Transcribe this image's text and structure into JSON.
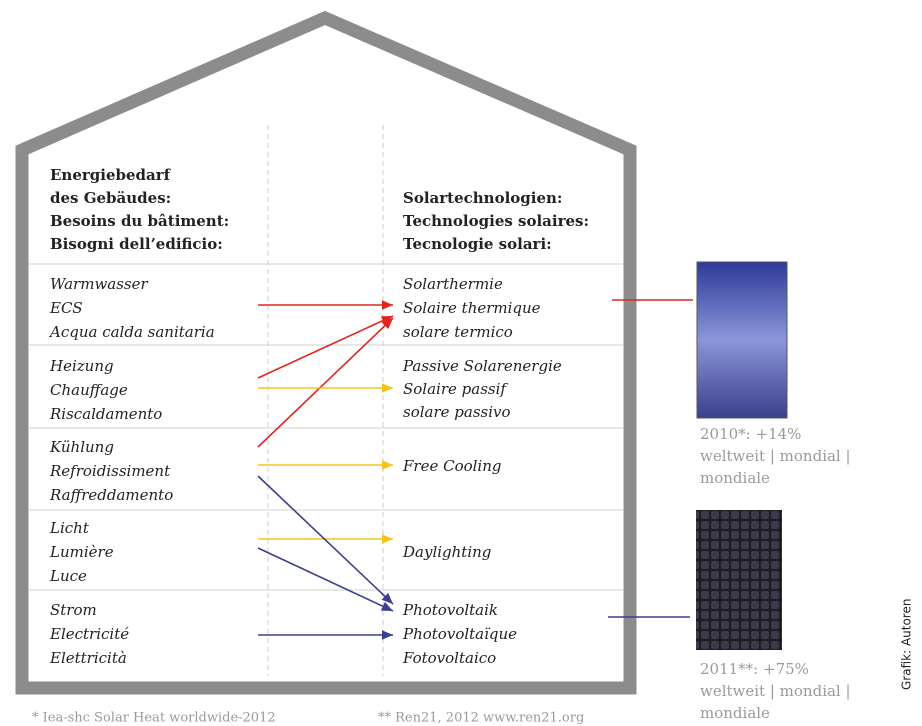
{
  "header": {
    "left": [
      "Energiebedarf",
      "des Gebäudes:",
      "Besoins du bâtiment:",
      "Bisogni dell’edificio:"
    ],
    "right": [
      "Solartechnologien:",
      "Technologies solaires:",
      "Tecnologie solari:"
    ]
  },
  "needs": [
    [
      "Warmwasser",
      "ECS",
      "Acqua calda sanitaria"
    ],
    [
      "Heizung",
      "Chauffage",
      "Riscaldamento"
    ],
    [
      "Kühlung",
      "Refroidissiment",
      "Raffreddamento"
    ],
    [
      "Licht",
      "Lumière",
      "Luce"
    ],
    [
      "Strom",
      "Electricité",
      "Elettricità"
    ]
  ],
  "technologies": [
    [
      "Solarthermie",
      "Solaire thermique",
      "solare termico"
    ],
    [
      "Passive Solarenergie",
      "Solaire passif",
      "solare passivo"
    ],
    [
      "Free Cooling"
    ],
    [
      "Daylighting"
    ],
    [
      "Photovoltaik",
      "Photovoltaïque",
      "Fotovoltaico"
    ]
  ],
  "panels": [
    {
      "label": "2010*: +14%",
      "lines": [
        "weltweit | mondial |",
        "mondiale"
      ]
    },
    {
      "label": "2011**: +75%",
      "lines": [
        "weltweit | mondial |",
        "mondiale"
      ]
    }
  ],
  "footnotes": [
    "* Iea-shc Solar Heat worldwide-2012",
    "** Ren21, 2012 www.ren21.org"
  ],
  "credit": "Grafik: Autoren"
}
